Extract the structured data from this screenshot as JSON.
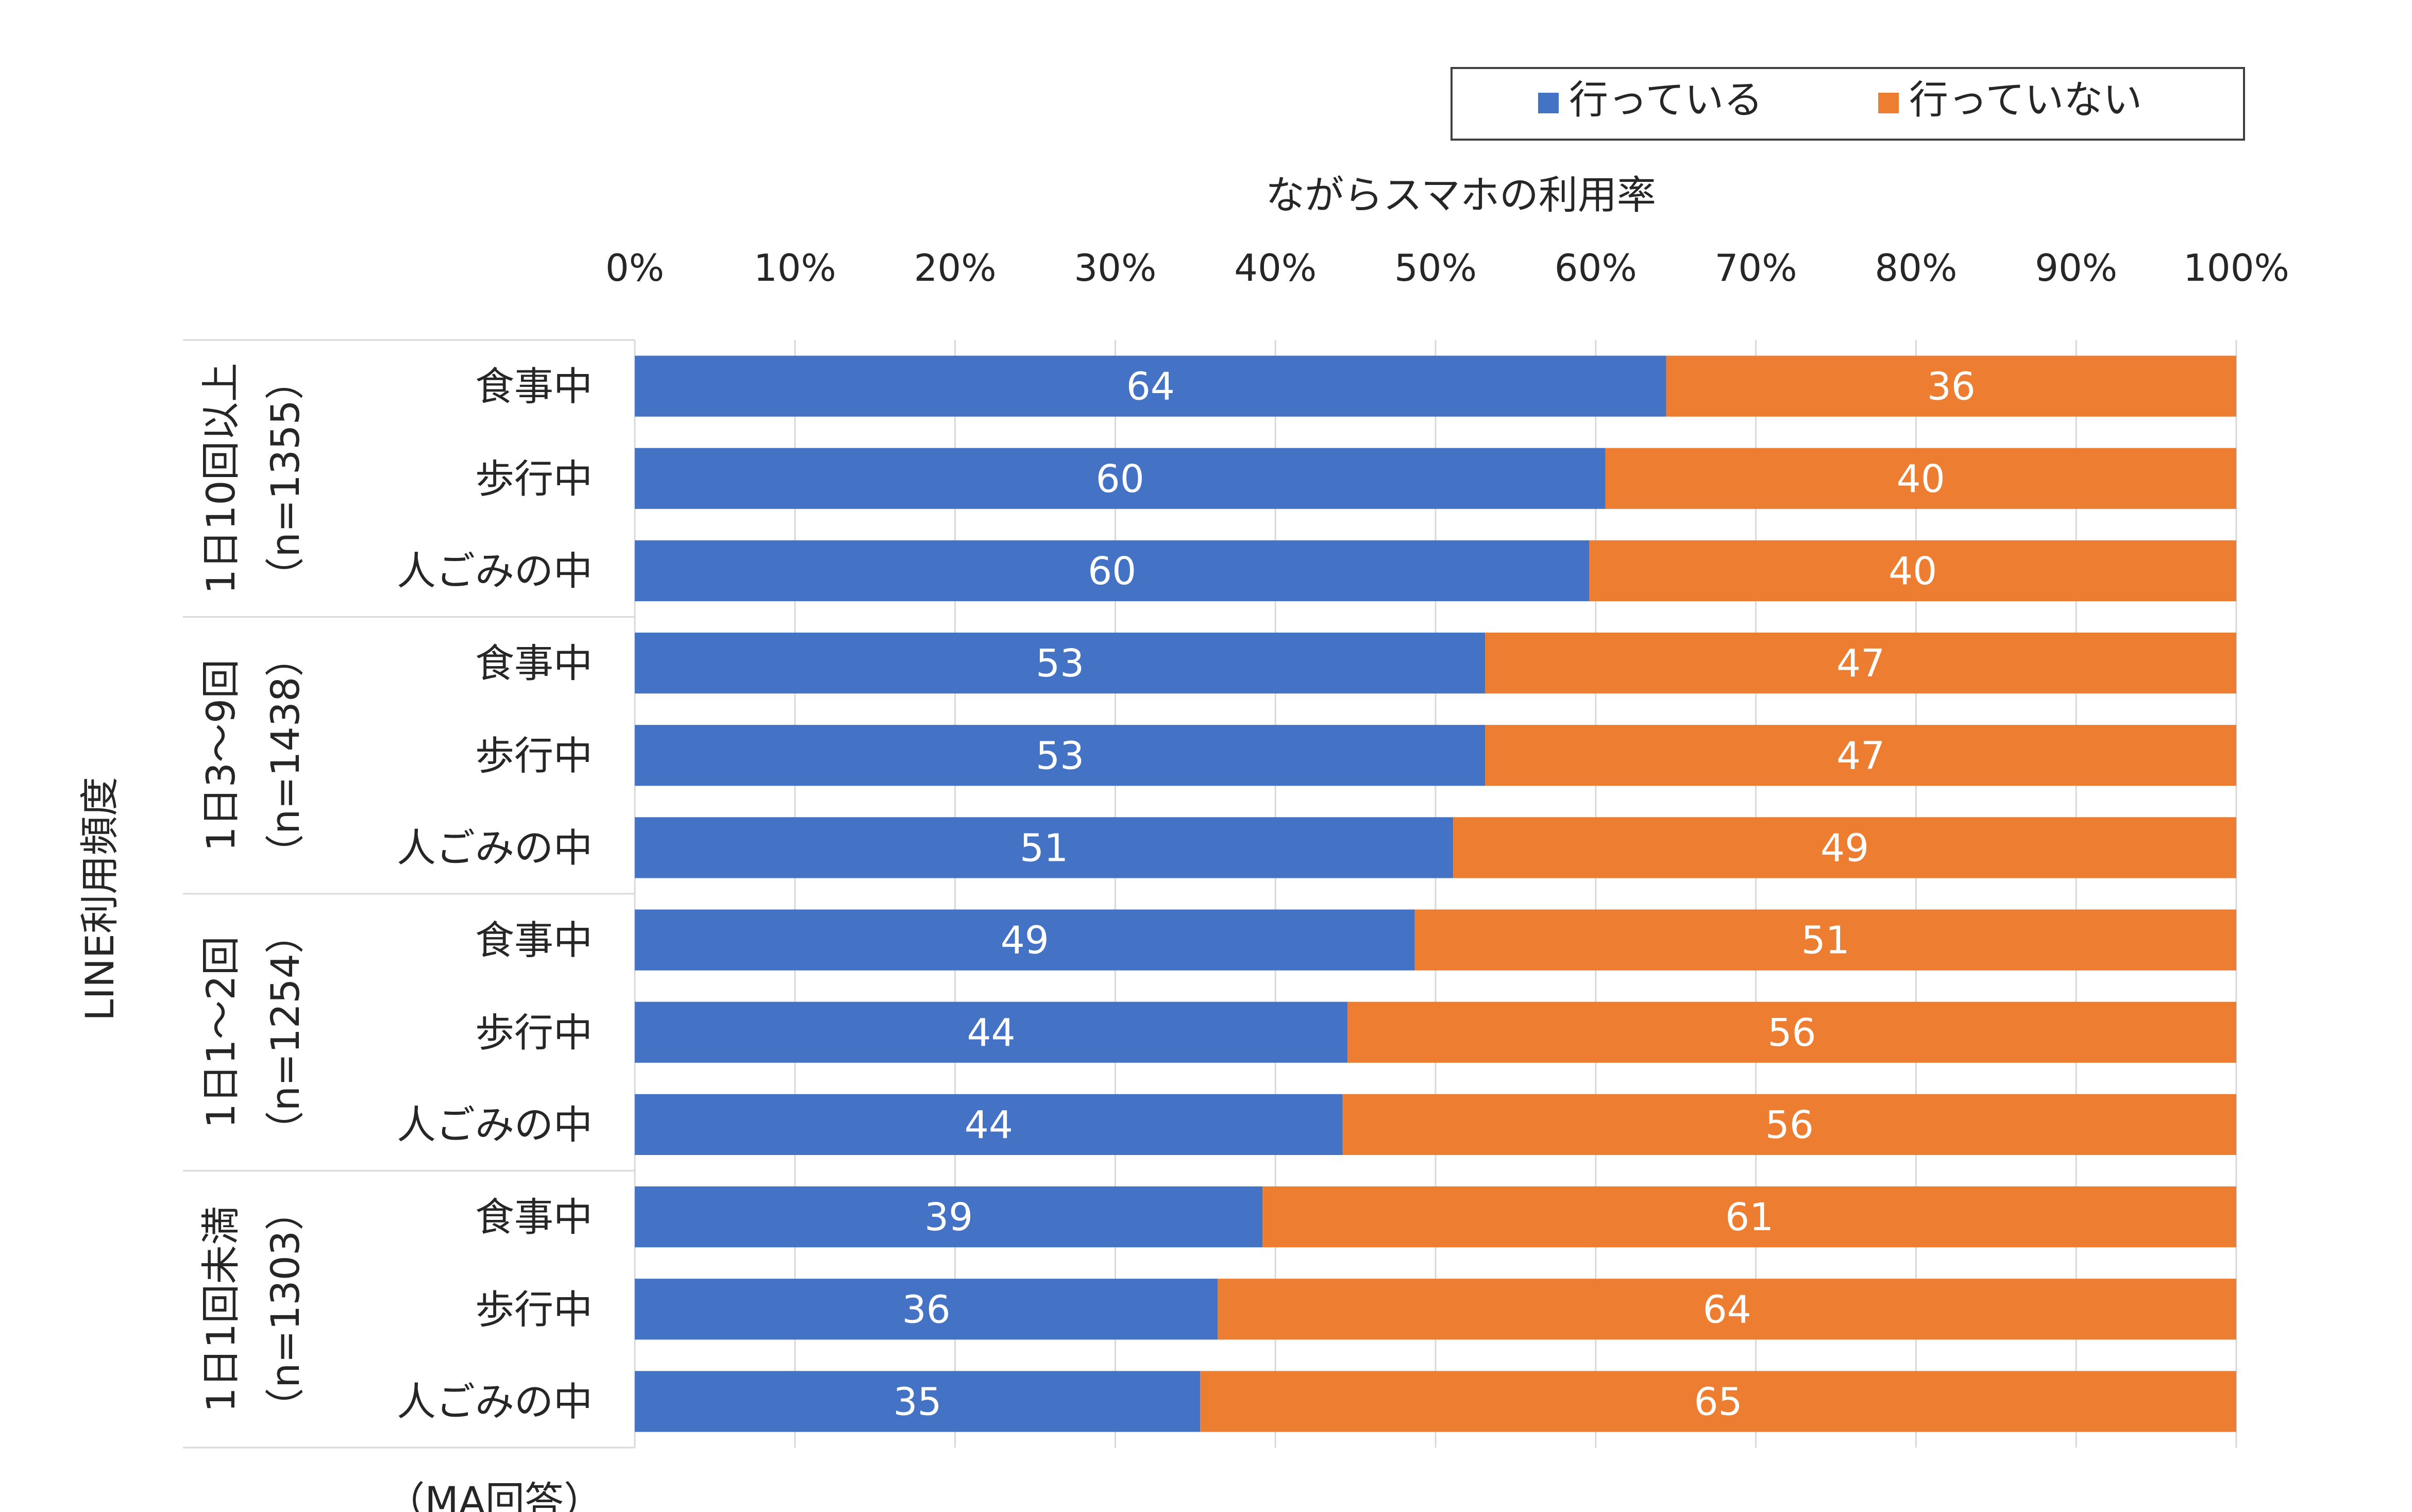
{
  "chart_data": {
    "type": "bar",
    "orientation": "horizontal",
    "stacked": "percent",
    "title": "ながらスマホの利用率",
    "ylabel": "LINE利用頻度",
    "xlim": [
      0,
      100
    ],
    "x_ticks": [
      "0%",
      "10%",
      "20%",
      "30%",
      "40%",
      "50%",
      "60%",
      "70%",
      "80%",
      "90%",
      "100%"
    ],
    "grid": "vertical",
    "legend_position": "top-right",
    "note": "（MA回答）",
    "colors": {
      "行っている": "#4472C4",
      "行っていない": "#ED7D31"
    },
    "groups": [
      {
        "label": "1日10回以上",
        "sub_label": "（n=1355）",
        "items": [
          {
            "category": "食事中",
            "行っている": 64,
            "行っていない": 36
          },
          {
            "category": "歩行中",
            "行っている": 60,
            "行っていない": 40
          },
          {
            "category": "人ごみの中",
            "行っている": 60,
            "行っていない": 40
          }
        ]
      },
      {
        "label": "1日3～9回",
        "sub_label": "（n=1438）",
        "items": [
          {
            "category": "食事中",
            "行っている": 53,
            "行っていない": 47
          },
          {
            "category": "歩行中",
            "行っている": 53,
            "行っていない": 47
          },
          {
            "category": "人ごみの中",
            "行っている": 51,
            "行っていない": 49
          }
        ]
      },
      {
        "label": "1日1～2回",
        "sub_label": "（n=1254）",
        "items": [
          {
            "category": "食事中",
            "行っている": 49,
            "行っていない": 51
          },
          {
            "category": "歩行中",
            "行っている": 44,
            "行っていない": 56
          },
          {
            "category": "人ごみの中",
            "行っている": 44,
            "行っていない": 56
          }
        ]
      },
      {
        "label": "1日1回未満",
        "sub_label": "（n=1303）",
        "items": [
          {
            "category": "食事中",
            "行っている": 39,
            "行っていない": 61
          },
          {
            "category": "歩行中",
            "行っている": 36,
            "行っていない": 64
          },
          {
            "category": "人ごみの中",
            "行っている": 35,
            "行っていない": 65
          }
        ]
      }
    ],
    "series": [
      {
        "name": "行っている",
        "values": [
          64,
          60,
          60,
          53,
          53,
          51,
          49,
          44,
          44,
          39,
          36,
          35
        ],
        "fill_share": [
          64.4,
          60.6,
          59.6,
          53.1,
          53.1,
          51.1,
          48.7,
          44.5,
          44.2,
          39.2,
          36.4,
          35.3
        ]
      },
      {
        "name": "行っていない",
        "values": [
          36,
          40,
          40,
          47,
          47,
          49,
          51,
          56,
          56,
          61,
          64,
          65
        ]
      }
    ]
  }
}
